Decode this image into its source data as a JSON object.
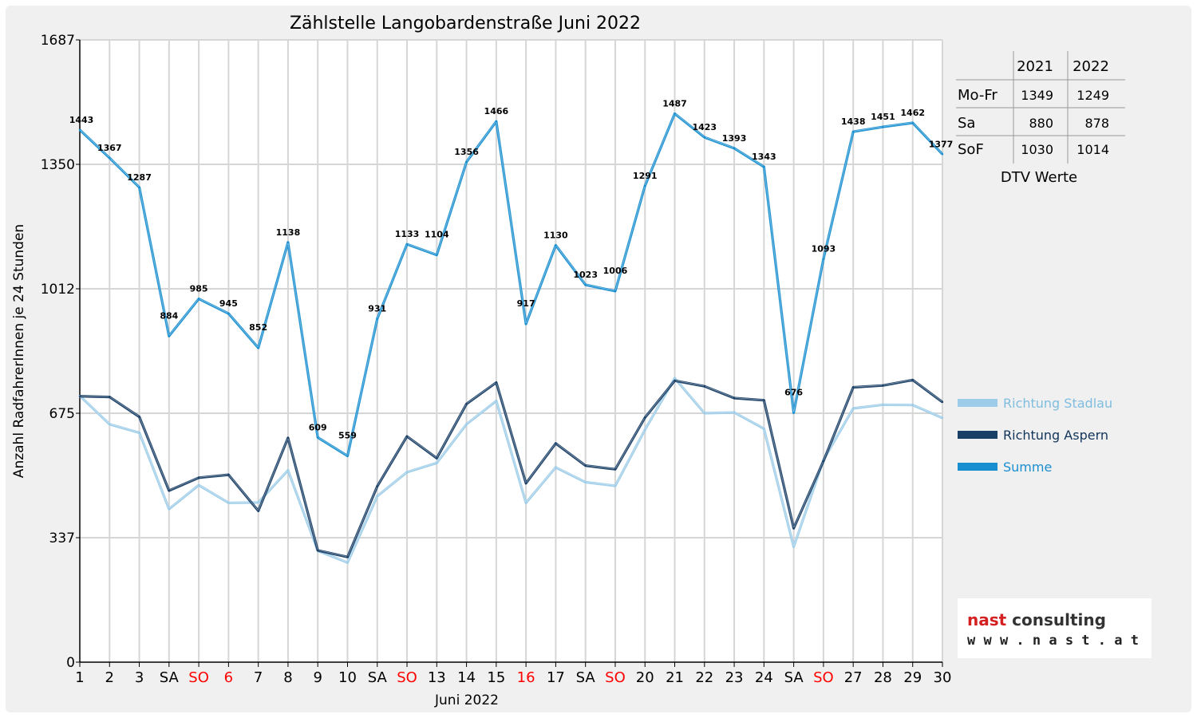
{
  "chart_data": {
    "type": "line",
    "title": "Zählstelle Langobardenstraße Juni 2022",
    "xlabel": "Juni 2022",
    "ylabel": "Anzahl RadfahrerInnen je 24 Stunden",
    "ylim": [
      0,
      1687
    ],
    "yticks": [
      "0",
      "337",
      "675",
      "1012",
      "1350",
      "1687"
    ],
    "grid": true,
    "categories": [
      "1",
      "2",
      "3",
      "SA",
      "SO",
      "6",
      "7",
      "8",
      "9",
      "10",
      "SA",
      "SO",
      "13",
      "14",
      "15",
      "16",
      "17",
      "SA",
      "SO",
      "20",
      "21",
      "22",
      "23",
      "24",
      "SA",
      "SO",
      "27",
      "28",
      "29",
      "30"
    ],
    "highlight_categories": [
      "SO",
      "SO",
      "6",
      "SO",
      "16",
      "SO"
    ],
    "highlight_color": "#ff0000",
    "series": [
      {
        "name": "Richtung Stadlau",
        "color": "#9dcce8",
        "values": [
          722,
          645,
          622,
          415,
          480,
          432,
          433,
          520,
          302,
          270,
          450,
          515,
          540,
          645,
          708,
          432,
          528,
          488,
          478,
          630,
          770,
          675,
          677,
          633,
          313,
          548,
          688,
          698,
          697,
          662
        ]
      },
      {
        "name": "Richtung Aspern",
        "color": "#1a3f66",
        "values": [
          721,
          719,
          665,
          465,
          500,
          508,
          410,
          608,
          303,
          285,
          477,
          612,
          553,
          700,
          758,
          485,
          593,
          533,
          523,
          663,
          763,
          748,
          716,
          710,
          363,
          545,
          745,
          750,
          765,
          705
        ]
      },
      {
        "name": "Summe",
        "color": "#1a8fd0",
        "values": [
          1443,
          1367,
          1287,
          884,
          985,
          945,
          852,
          1138,
          609,
          559,
          931,
          1133,
          1104,
          1356,
          1466,
          917,
          1130,
          1023,
          1006,
          1291,
          1487,
          1423,
          1393,
          1343,
          676,
          1093,
          1438,
          1451,
          1462,
          1377
        ]
      }
    ],
    "data_labels": [
      "1443",
      "1367",
      "1287",
      "884",
      "985",
      "945",
      "852",
      "1138",
      "609",
      "559",
      "931",
      "1133",
      "1104",
      "1356",
      "1466",
      "917",
      "1130",
      "1023",
      "1006",
      "1291",
      "1487",
      "1423",
      "1393",
      "1343",
      "676",
      "1093",
      "1438",
      "1451",
      "1462",
      "1377"
    ],
    "legend_position": "right"
  },
  "dtv_table": {
    "caption": "DTV Werte",
    "headers": [
      "",
      "2021",
      "2022"
    ],
    "rows": [
      {
        "label": "Mo-Fr",
        "v2021": "1349",
        "v2022": "1249"
      },
      {
        "label": "Sa",
        "v2021": "880",
        "v2022": "878"
      },
      {
        "label": "SoF",
        "v2021": "1030",
        "v2022": "1014"
      }
    ]
  },
  "logo": {
    "brand_a": "nast",
    "brand_b": " consulting",
    "url": "w w w . n a s t . a t",
    "color_a": "#d42020",
    "color_b": "#333333"
  }
}
